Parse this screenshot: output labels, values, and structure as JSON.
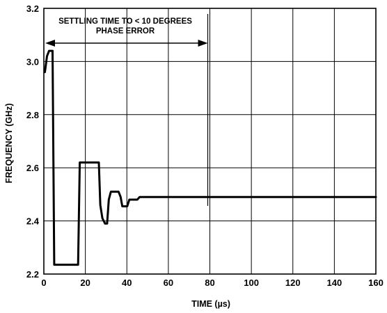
{
  "chart_data": {
    "type": "line",
    "xlabel": "TIME (µs)",
    "ylabel": "FREQUENCY (GHz)",
    "xlim": [
      0,
      160
    ],
    "ylim": [
      2.2,
      3.2
    ],
    "x_ticks": [
      "0",
      "20",
      "40",
      "60",
      "80",
      "100",
      "120",
      "140",
      "160"
    ],
    "y_ticks": [
      "2.2",
      "2.4",
      "2.6",
      "2.8",
      "3.0",
      "3.2"
    ],
    "grid": true,
    "annotation": {
      "line1": "SETTLING TIME TO < 10 DEGREES",
      "line2": "PHASE ERROR",
      "x_start": 0,
      "x_end": 79
    },
    "series": [
      {
        "x": [
          0.5,
          1.5,
          2.5,
          3.3,
          4.2,
          5.0,
          10,
          16.5,
          17.3,
          22,
          26.5,
          27.2,
          28.2,
          29.5,
          30.5,
          31.3,
          32.3,
          33.5,
          36,
          37,
          37.8,
          38.8,
          40.2,
          41.2,
          41.8,
          42.8,
          45,
          46.2,
          47.5,
          55,
          80,
          100,
          120,
          140,
          160
        ],
        "values": [
          2.96,
          3.02,
          3.04,
          3.04,
          3.04,
          2.235,
          2.235,
          2.235,
          2.62,
          2.62,
          2.62,
          2.46,
          2.41,
          2.39,
          2.39,
          2.48,
          2.51,
          2.51,
          2.51,
          2.49,
          2.455,
          2.455,
          2.455,
          2.48,
          2.48,
          2.48,
          2.48,
          2.49,
          2.49,
          2.49,
          2.49,
          2.49,
          2.49,
          2.49,
          2.49
        ]
      }
    ]
  }
}
